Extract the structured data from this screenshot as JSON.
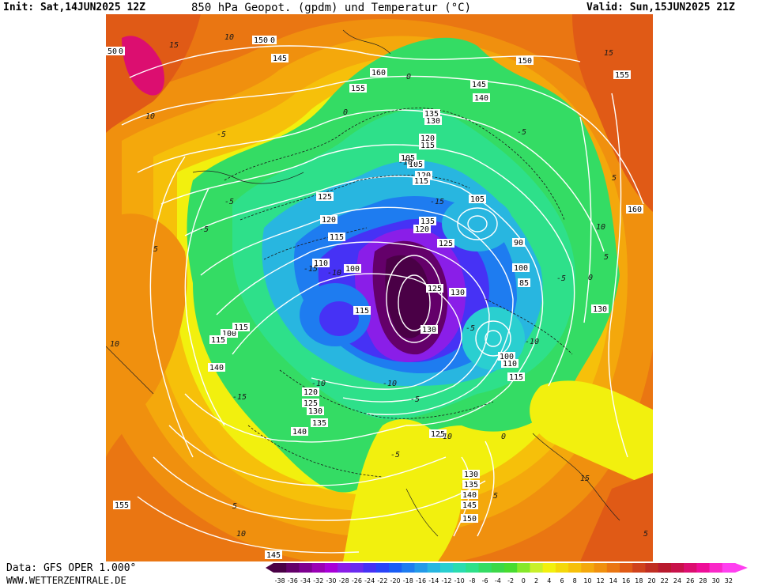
{
  "header": {
    "init": "Init: Sat,14JUN2025 12Z",
    "title": "850 hPa Geopot. (gpdm) und Temperatur (°C)",
    "valid": "Valid: Sun,15JUN2025 21Z"
  },
  "footer": {
    "data_source": "Data: GFS OPER 1.000°",
    "website": "WWW.WETTERZENTRALE.DE"
  },
  "colorbar": {
    "ticks": [
      "-38",
      "-36",
      "-34",
      "-32",
      "-30",
      "-28",
      "-26",
      "-24",
      "-22",
      "-20",
      "-18",
      "-16",
      "-14",
      "-12",
      "-10",
      "-8",
      "-6",
      "-4",
      "-2",
      "0",
      "2",
      "4",
      "6",
      "8",
      "10",
      "12",
      "14",
      "16",
      "18",
      "20",
      "22",
      "24",
      "26",
      "28",
      "30",
      "32"
    ],
    "colors": [
      "#4a0046",
      "#64006a",
      "#7e0090",
      "#9a00b4",
      "#a800d8",
      "#8a1ee8",
      "#6a2cf0",
      "#4632f5",
      "#2a44f8",
      "#1a5ef5",
      "#1e7cf0",
      "#239ae8",
      "#28b6e0",
      "#2acfd0",
      "#2adcb0",
      "#2ee08a",
      "#34dc64",
      "#3cd848",
      "#48dc30",
      "#86e82a",
      "#c8f02a",
      "#f2f00e",
      "#f4d80a",
      "#f6c00a",
      "#f4a80c",
      "#f0900e",
      "#ea7612",
      "#e05a16",
      "#d0421c",
      "#c02e22",
      "#b81a2e",
      "#c8124a",
      "#dc0e70",
      "#ee0e98",
      "#fa28c8",
      "#ff40f0"
    ]
  },
  "contour_labels": [
    {
      "t": "150",
      "id": "h150"
    },
    {
      "t": "145",
      "id": "h145"
    },
    {
      "t": "160",
      "id": "h160"
    },
    {
      "t": "155",
      "id": "h155"
    },
    {
      "t": "135",
      "id": "h135"
    },
    {
      "t": "130",
      "id": "h130"
    },
    {
      "t": "120",
      "id": "h120"
    },
    {
      "t": "115",
      "id": "h115"
    },
    {
      "t": "125",
      "id": "h125"
    },
    {
      "t": "105",
      "id": "h105"
    },
    {
      "t": "90",
      "id": "h90"
    },
    {
      "t": "100",
      "id": "h100"
    },
    {
      "t": "110",
      "id": "h110"
    },
    {
      "t": "140",
      "id": "h140"
    },
    {
      "t": "50",
      "id": "h50"
    }
  ],
  "temp_labels": [
    "10",
    "15",
    "-5",
    "0",
    "5",
    "-10",
    "-15"
  ],
  "scale_semantics": {
    "temperature_min": -38,
    "temperature_max": 32,
    "unit": "°C",
    "geopotential_unit": "gpdm"
  }
}
